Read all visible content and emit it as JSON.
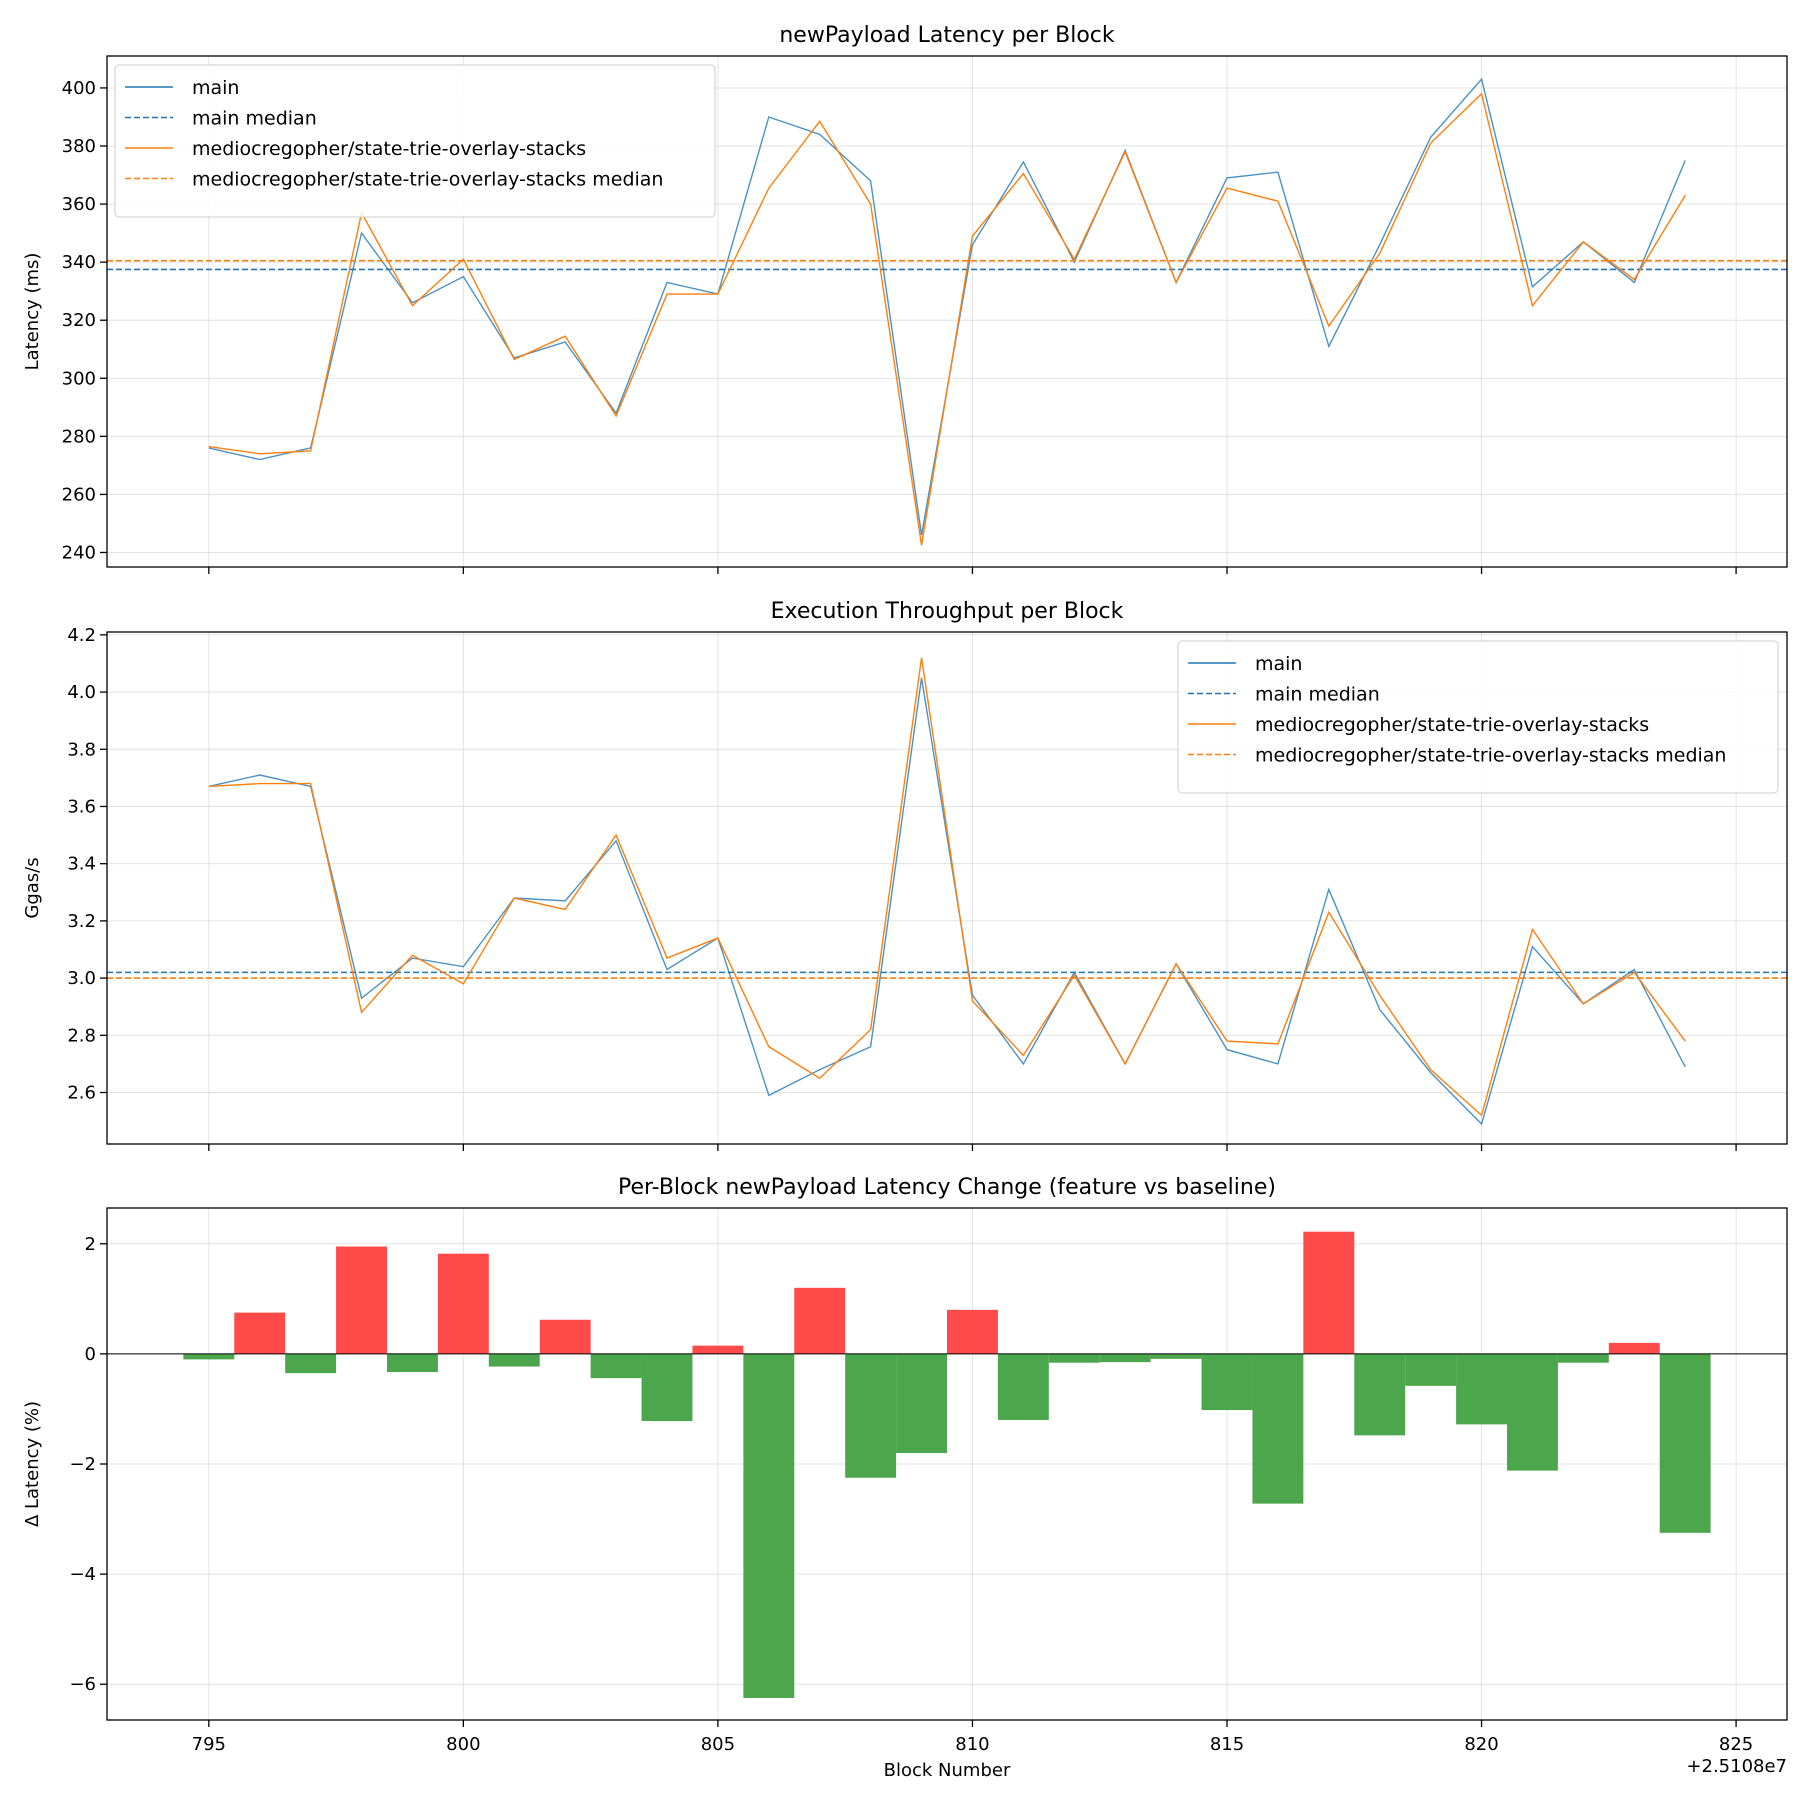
{
  "colors": {
    "main": "#1f77b4",
    "feature": "#ff7f0e",
    "increase": "#ff4a4a",
    "decrease": "#4ca64c"
  },
  "chart_data": [
    {
      "type": "line",
      "title": "newPayload Latency per Block",
      "xlabel": "",
      "ylabel": "Latency (ms)",
      "xlim": [
        793,
        826
      ],
      "ylim": [
        235,
        411
      ],
      "yticks": [
        240,
        260,
        280,
        300,
        320,
        340,
        360,
        380,
        400
      ],
      "xticks": [
        795,
        800,
        805,
        810,
        815,
        820,
        825
      ],
      "grid": true,
      "legend": "top-left",
      "x": [
        795,
        796,
        797,
        798,
        799,
        800,
        801,
        802,
        803,
        804,
        805,
        806,
        807,
        808,
        809,
        810,
        811,
        812,
        813,
        814,
        815,
        816,
        817,
        818,
        819,
        820,
        821,
        822,
        823,
        824
      ],
      "series": [
        {
          "name": "main",
          "style": "solid",
          "color": "main",
          "values": [
            276,
            272,
            276,
            350,
            326,
            335,
            307,
            312.5,
            288,
            333,
            329,
            390,
            384,
            368,
            246,
            346,
            374.5,
            340,
            378.5,
            333,
            369,
            371,
            311,
            346,
            383,
            403,
            331.5,
            347,
            333,
            375
          ]
        },
        {
          "name": "main median",
          "style": "dashed",
          "color": "main",
          "constant": 337.5
        },
        {
          "name": "mediocregopher/state-trie-overlay-stacks",
          "style": "solid",
          "color": "feature",
          "values": [
            276.5,
            274,
            275,
            357,
            325,
            341,
            306.5,
            314.5,
            287,
            329,
            329,
            365.5,
            388.5,
            360,
            242.5,
            349,
            370.5,
            341,
            378,
            333,
            365.5,
            361,
            318,
            343,
            381,
            398,
            325,
            347,
            334,
            363
          ]
        },
        {
          "name": "mediocregopher/state-trie-overlay-stacks median",
          "style": "dashed",
          "color": "feature",
          "constant": 340.5
        }
      ]
    },
    {
      "type": "line",
      "title": "Execution Throughput per Block",
      "xlabel": "",
      "ylabel": "Ggas/s",
      "xlim": [
        793,
        826
      ],
      "ylim": [
        2.42,
        4.21
      ],
      "yticks": [
        2.6,
        2.8,
        3.0,
        3.2,
        3.4,
        3.6,
        3.8,
        4.0,
        4.2
      ],
      "ytick_labels": [
        "2.6",
        "2.8",
        "3.0",
        "3.2",
        "3.4",
        "3.6",
        "3.8",
        "4.0",
        "4.2"
      ],
      "xticks": [
        795,
        800,
        805,
        810,
        815,
        820,
        825
      ],
      "grid": true,
      "legend": "top-right",
      "x": [
        795,
        796,
        797,
        798,
        799,
        800,
        801,
        802,
        803,
        804,
        805,
        806,
        807,
        808,
        809,
        810,
        811,
        812,
        813,
        814,
        815,
        816,
        817,
        818,
        819,
        820,
        821,
        822,
        823,
        824
      ],
      "series": [
        {
          "name": "main",
          "style": "solid",
          "color": "main",
          "values": [
            3.67,
            3.71,
            3.67,
            2.93,
            3.07,
            3.04,
            3.28,
            3.27,
            3.48,
            3.03,
            3.14,
            2.59,
            2.68,
            2.76,
            4.05,
            2.94,
            2.7,
            3.02,
            2.7,
            3.05,
            2.75,
            2.7,
            3.31,
            2.89,
            2.67,
            2.49,
            3.11,
            2.91,
            3.03,
            2.69
          ]
        },
        {
          "name": "main median",
          "style": "dashed",
          "color": "main",
          "constant": 3.02
        },
        {
          "name": "mediocregopher/state-trie-overlay-stacks",
          "style": "solid",
          "color": "feature",
          "values": [
            3.67,
            3.68,
            3.68,
            2.88,
            3.08,
            2.98,
            3.28,
            3.24,
            3.5,
            3.07,
            3.14,
            2.76,
            2.65,
            2.82,
            4.12,
            2.92,
            2.73,
            3.01,
            2.7,
            3.05,
            2.78,
            2.77,
            3.23,
            2.94,
            2.68,
            2.52,
            3.17,
            2.91,
            3.02,
            2.78
          ]
        },
        {
          "name": "mediocregopher/state-trie-overlay-stacks median",
          "style": "dashed",
          "color": "feature",
          "constant": 3.0
        }
      ]
    },
    {
      "type": "bar",
      "title": "Per-Block newPayload Latency Change (feature vs baseline)",
      "xlabel": "Block Number",
      "ylabel": "Δ Latency (%)",
      "x_offset_label": "+2.5108e7",
      "xlim": [
        793,
        826
      ],
      "ylim": [
        -6.65,
        2.65
      ],
      "yticks": [
        -6,
        -4,
        -2,
        0,
        2
      ],
      "ytick_labels": [
        "−6",
        "−4",
        "−2",
        "0",
        "2"
      ],
      "xticks": [
        795,
        800,
        805,
        810,
        815,
        820,
        825
      ],
      "grid": true,
      "x": [
        795,
        796,
        797,
        798,
        799,
        800,
        801,
        802,
        803,
        804,
        805,
        806,
        807,
        808,
        809,
        810,
        811,
        812,
        813,
        814,
        815,
        816,
        817,
        818,
        819,
        820,
        821,
        822,
        823,
        824
      ],
      "values": [
        -0.1,
        0.75,
        -0.35,
        1.95,
        -0.33,
        1.82,
        -0.23,
        0.62,
        -0.44,
        -1.22,
        0.15,
        -6.25,
        1.2,
        -2.25,
        -1.8,
        0.8,
        -1.2,
        -0.16,
        -0.15,
        -0.09,
        -1.02,
        -2.72,
        2.22,
        -1.48,
        -0.58,
        -1.28,
        -2.12,
        -0.16,
        0.2,
        -3.25
      ]
    }
  ]
}
